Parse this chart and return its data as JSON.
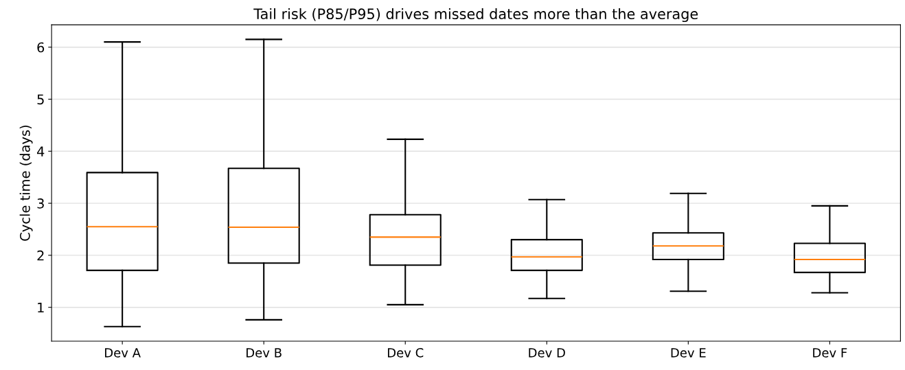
{
  "chart_data": {
    "type": "box",
    "title": "Tail risk (P85/P95) drives missed dates more than the average",
    "ylabel": "Cycle time (days)",
    "categories": [
      "Dev A",
      "Dev B",
      "Dev C",
      "Dev D",
      "Dev E",
      "Dev F"
    ],
    "boxes": [
      {
        "low": 0.63,
        "q1": 1.71,
        "median": 2.55,
        "q3": 3.59,
        "high": 6.1
      },
      {
        "low": 0.76,
        "q1": 1.85,
        "median": 2.54,
        "q3": 3.67,
        "high": 6.15
      },
      {
        "low": 1.05,
        "q1": 1.81,
        "median": 2.35,
        "q3": 2.78,
        "high": 4.23
      },
      {
        "low": 1.17,
        "q1": 1.71,
        "median": 1.97,
        "q3": 2.3,
        "high": 3.07
      },
      {
        "low": 1.31,
        "q1": 1.92,
        "median": 2.18,
        "q3": 2.43,
        "high": 3.19
      },
      {
        "low": 1.28,
        "q1": 1.67,
        "median": 1.92,
        "q3": 2.23,
        "high": 2.95
      }
    ],
    "color": "#000000",
    "ylim": [
      0.35,
      6.43
    ],
    "yticks": [
      1,
      2,
      3,
      4,
      5,
      6
    ],
    "grid": "y"
  }
}
